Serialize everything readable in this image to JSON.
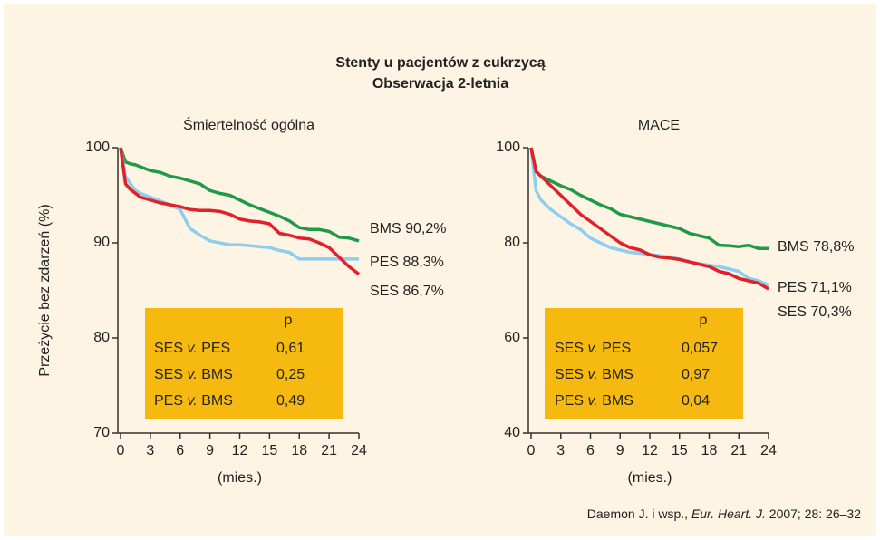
{
  "title": [
    "Stenty u pacjentów z cukrzycą",
    "Obserwacja 2-letnia"
  ],
  "chart_data": [
    {
      "type": "line",
      "subtitle": "Śmiertelność ogólna",
      "ylabel": "Przeżycie bez zdarzeń (%)",
      "xlabel": "(mies.)",
      "x": [
        0,
        0.5,
        1,
        1.5,
        2,
        3,
        4,
        5,
        6,
        7,
        8,
        9,
        10,
        11,
        12,
        13,
        14,
        15,
        16,
        17,
        18,
        19,
        20,
        21,
        22,
        23,
        24
      ],
      "xlim": [
        0,
        24
      ],
      "xticks": [
        0,
        3,
        6,
        9,
        12,
        15,
        18,
        21,
        24
      ],
      "ylim": [
        70,
        100
      ],
      "yticks": [
        70,
        80,
        90,
        100
      ],
      "series": [
        {
          "name": "BMS 90,2%",
          "color": "#1f9a48",
          "values": [
            100,
            98.5,
            98.3,
            98.2,
            98,
            97.6,
            97.4,
            97,
            96.8,
            96.5,
            96.2,
            95.5,
            95.2,
            95,
            94.5,
            94,
            93.6,
            93.2,
            92.8,
            92.3,
            91.6,
            91.4,
            91.4,
            91.2,
            90.6,
            90.5,
            90.2
          ]
        },
        {
          "name": "PES 88,3%",
          "color": "#8fcdf0",
          "values": [
            100,
            97,
            96.2,
            95.5,
            95.2,
            94.8,
            94.4,
            94,
            93.5,
            91.5,
            90.8,
            90.2,
            90,
            89.8,
            89.8,
            89.7,
            89.6,
            89.5,
            89.2,
            89,
            88.3,
            88.3,
            88.3,
            88.3,
            88.3,
            88.3,
            88.3
          ]
        },
        {
          "name": "SES 86,7%",
          "color": "#e2202a",
          "values": [
            100,
            96.2,
            95.6,
            95.2,
            94.8,
            94.5,
            94.2,
            94,
            93.8,
            93.5,
            93.4,
            93.4,
            93.3,
            93,
            92.5,
            92.3,
            92.2,
            92,
            91,
            90.8,
            90.5,
            90.4,
            90,
            89.5,
            88.5,
            87.5,
            86.7
          ]
        }
      ],
      "pvalue_table": {
        "header": "p",
        "rows": [
          {
            "left": "SES",
            "vs": "v.",
            "right": "PES",
            "p": "0,61"
          },
          {
            "left": "SES",
            "vs": "v.",
            "right": "BMS",
            "p": "0,25"
          },
          {
            "left": "PES",
            "vs": "v.",
            "right": "BMS",
            "p": "0,49"
          }
        ]
      }
    },
    {
      "type": "line",
      "subtitle": "MACE",
      "xlabel": "(mies.)",
      "x": [
        0,
        0.5,
        1,
        1.5,
        2,
        3,
        4,
        5,
        6,
        7,
        8,
        9,
        10,
        11,
        12,
        13,
        14,
        15,
        16,
        17,
        18,
        19,
        20,
        21,
        22,
        23,
        24
      ],
      "xlim": [
        0,
        24
      ],
      "xticks": [
        0,
        3,
        6,
        9,
        12,
        15,
        18,
        21,
        24
      ],
      "ylim": [
        40,
        100
      ],
      "yticks": [
        40,
        60,
        80,
        100
      ],
      "series": [
        {
          "name": "BMS 78,8%",
          "color": "#1f9a48",
          "values": [
            100,
            95,
            94,
            93.5,
            93,
            92,
            91.2,
            90,
            89,
            88,
            87.2,
            86,
            85.5,
            85,
            84.5,
            84,
            83.5,
            83,
            82,
            81.5,
            81,
            79.5,
            79.4,
            79.2,
            79.5,
            78.8,
            78.8
          ]
        },
        {
          "name": "PES 71,1%",
          "color": "#8fcdf0",
          "values": [
            100,
            91,
            89,
            88,
            87,
            85.5,
            84,
            82.8,
            81,
            80,
            79,
            78.5,
            78,
            77.8,
            77.5,
            77.3,
            77,
            76.6,
            76,
            75.6,
            75.3,
            75,
            74.5,
            74,
            72.5,
            72,
            71.1
          ]
        },
        {
          "name": "SES 70,3%",
          "color": "#e2202a",
          "values": [
            100,
            95,
            94,
            93,
            92,
            90,
            88,
            86,
            84.5,
            83,
            81.5,
            80,
            79,
            78.5,
            77.5,
            77,
            76.8,
            76.5,
            76,
            75.5,
            75,
            74,
            73.5,
            72.5,
            72,
            71.5,
            70.3
          ]
        }
      ],
      "pvalue_table": {
        "header": "p",
        "rows": [
          {
            "left": "SES",
            "vs": "v.",
            "right": "PES",
            "p": "0,057"
          },
          {
            "left": "SES",
            "vs": "v.",
            "right": "BMS",
            "p": "0,97"
          },
          {
            "left": "PES",
            "vs": "v.",
            "right": "BMS",
            "p": "0,04"
          }
        ]
      }
    }
  ],
  "citation": {
    "pre": "Daemon J. i wsp., ",
    "journal": "Eur. Heart. J.",
    "post": " 2007; 28: 26–32"
  }
}
